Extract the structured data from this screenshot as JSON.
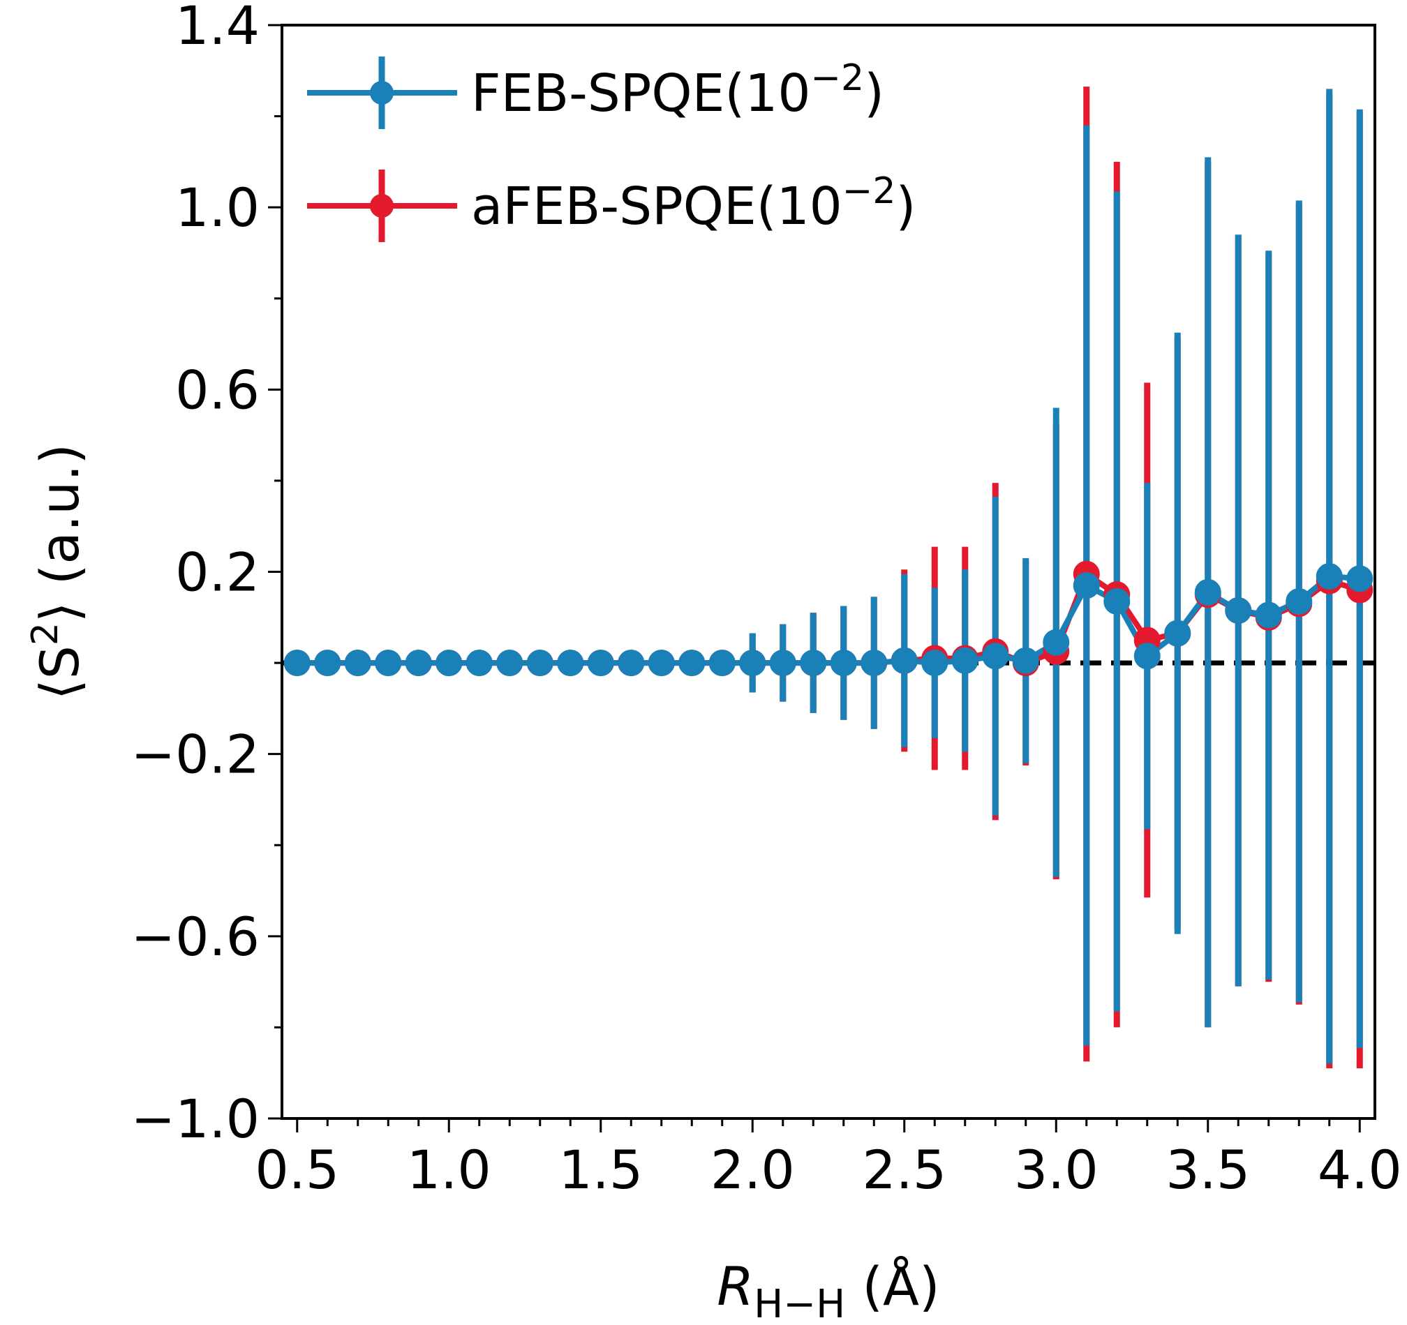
{
  "chart_data": {
    "type": "scatter",
    "xlabel": "R_{H–H} (Å)",
    "ylabel": "⟨S²⟩ (a.u.)",
    "xlabel_parts": {
      "base": "R",
      "sub": "H−H",
      "suffix": " (Å)"
    },
    "ylabel_parts": {
      "pre": "⟨S",
      "sup": "2",
      "post": "⟩ (a.u.)"
    },
    "xlim": [
      0.45,
      4.05
    ],
    "ylim": [
      -1.0,
      1.4
    ],
    "xticks": [
      0.5,
      1.0,
      1.5,
      2.0,
      2.5,
      3.0,
      3.5,
      4.0
    ],
    "xtick_labels": [
      "0.5",
      "1.0",
      "1.5",
      "2.0",
      "2.5",
      "3.0",
      "3.5",
      "4.0"
    ],
    "yticks": [
      -1.0,
      -0.6,
      -0.2,
      0.2,
      0.6,
      1.0,
      1.4
    ],
    "ytick_labels": [
      "−1.0",
      "−0.6",
      "−0.2",
      "0.2",
      "0.6",
      "1.0",
      "1.4"
    ],
    "reference_line": {
      "y": 0,
      "style": "dashed",
      "color": "#000000"
    },
    "legend_position": "top-left",
    "x": [
      0.5,
      0.6,
      0.7,
      0.8,
      0.9,
      1.0,
      1.1,
      1.2,
      1.3,
      1.4,
      1.5,
      1.6,
      1.7,
      1.8,
      1.9,
      2.0,
      2.1,
      2.2,
      2.3,
      2.4,
      2.5,
      2.6,
      2.7,
      2.8,
      2.9,
      3.0,
      3.1,
      3.2,
      3.3,
      3.4,
      3.5,
      3.6,
      3.7,
      3.8,
      3.9,
      4.0
    ],
    "series": [
      {
        "name": "aFEB-SPQE(10⁻²)",
        "legend_parts": {
          "base": "aFEB-SPQE(10",
          "sup": "−2",
          "close": ")"
        },
        "color": "#e31a2d",
        "y": [
          0,
          0,
          0,
          0,
          0,
          0,
          0,
          0,
          0,
          0,
          0,
          0,
          0,
          0,
          0,
          0,
          0,
          0,
          0,
          0,
          0.005,
          0.01,
          0.01,
          0.025,
          0,
          0.025,
          0.195,
          0.15,
          0.05,
          0.065,
          0.15,
          0.115,
          0.1,
          0.13,
          0.18,
          0.16
        ],
        "err": [
          0,
          0,
          0,
          0,
          0,
          0,
          0,
          0,
          0,
          0,
          0,
          0,
          0,
          0,
          0,
          0.065,
          0.085,
          0.11,
          0.125,
          0.145,
          0.2,
          0.245,
          0.245,
          0.37,
          0.225,
          0.5,
          1.07,
          0.95,
          0.565,
          0.65,
          0.95,
          0.825,
          0.8,
          0.88,
          1.07,
          1.05
        ]
      },
      {
        "name": "FEB-SPQE(10⁻²)",
        "legend_parts": {
          "base": "FEB-SPQE(10",
          "sup": "−2",
          "close": ")"
        },
        "color": "#1a80b8",
        "y": [
          0,
          0,
          0,
          0,
          0,
          0,
          0,
          0,
          0,
          0,
          0,
          0,
          0,
          0,
          0,
          0,
          0,
          0,
          0,
          0,
          0.005,
          0,
          0.005,
          0.015,
          0.005,
          0.045,
          0.17,
          0.135,
          0.015,
          0.065,
          0.155,
          0.115,
          0.105,
          0.135,
          0.19,
          0.185
        ],
        "err": [
          0,
          0,
          0,
          0,
          0,
          0,
          0,
          0,
          0,
          0,
          0,
          0,
          0,
          0,
          0,
          0.065,
          0.085,
          0.11,
          0.125,
          0.145,
          0.19,
          0.165,
          0.2,
          0.35,
          0.225,
          0.515,
          1.01,
          0.9,
          0.38,
          0.66,
          0.955,
          0.825,
          0.8,
          0.88,
          1.07,
          1.03
        ]
      }
    ]
  }
}
